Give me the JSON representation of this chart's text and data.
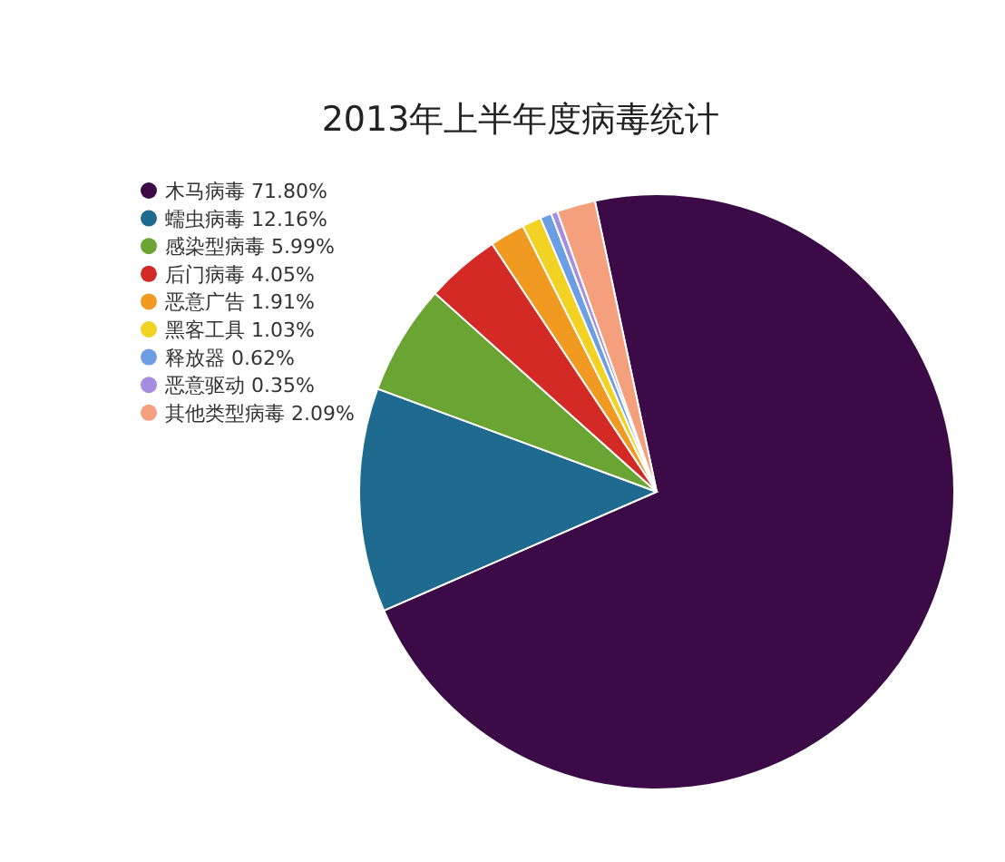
{
  "chart_data": {
    "type": "pie",
    "title": "2013年上半年度病毒统计",
    "categories": [
      "木马病毒",
      "蠕虫病毒",
      "感染型病毒",
      "后门病毒",
      "恶意广告",
      "黑客工具",
      "释放器",
      "恶意驱动",
      "其他类型病毒"
    ],
    "values": [
      71.8,
      12.16,
      5.99,
      4.05,
      1.91,
      1.03,
      0.62,
      0.35,
      2.09
    ],
    "value_labels": [
      "71.80%",
      "12.16%",
      "5.99%",
      "4.05%",
      "1.91%",
      "1.03%",
      "0.62%",
      "0.35%",
      "2.09%"
    ],
    "colors": [
      "#3c0a46",
      "#1e6b8f",
      "#6aa534",
      "#d42a26",
      "#f09a22",
      "#f2d223",
      "#6c9ee6",
      "#a58ee0",
      "#f5a07c"
    ],
    "legend": "left"
  }
}
